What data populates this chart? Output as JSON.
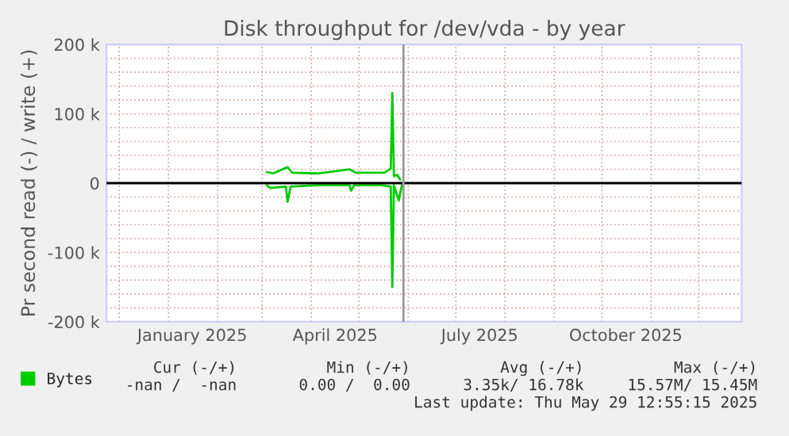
{
  "chart_data": {
    "type": "line",
    "title": "Disk throughput for /dev/vda - by year",
    "ylabel": "Pr second read (-) / write (+)",
    "xlim": [
      "2024-11-23",
      "2025-12-28"
    ],
    "xticks": [
      {
        "value": "2025-01-16",
        "label": "January 2025"
      },
      {
        "value": "2025-04-16",
        "label": "April 2025"
      },
      {
        "value": "2025-07-16",
        "label": "July 2025"
      },
      {
        "value": "2025-10-16",
        "label": "October 2025"
      }
    ],
    "ylim": [
      -200000,
      200000
    ],
    "yticks": [
      {
        "value": -200000,
        "label": "-200 k"
      },
      {
        "value": -100000,
        "label": "-100 k"
      },
      {
        "value": 0,
        "label": "0"
      },
      {
        "value": 100000,
        "label": "100 k"
      },
      {
        "value": 200000,
        "label": "200 k"
      }
    ],
    "grid": true,
    "legend": "bottom left",
    "series": [
      {
        "name": "Bytes",
        "color": "#00cc00",
        "x": [
          "2025-03-04",
          "2025-03-08",
          "2025-03-17",
          "2025-03-20",
          "2025-04-05",
          "2025-04-25",
          "2025-04-29",
          "2025-05-17",
          "2025-05-21",
          "2025-05-22",
          "2025-05-23",
          "2025-05-25",
          "2025-05-27"
        ],
        "values": [
          16000,
          14000,
          23000,
          15000,
          14000,
          20000,
          15000,
          15000,
          21000,
          130000,
          10000,
          12000,
          5000
        ]
      },
      {
        "color": "#00cc00",
        "x": [
          "2025-03-04",
          "2025-03-06",
          "2025-03-16",
          "2025-03-17",
          "2025-03-19",
          "2025-04-05",
          "2025-04-25",
          "2025-04-26",
          "2025-04-28",
          "2025-05-15",
          "2025-05-21",
          "2025-05-22",
          "2025-05-23",
          "2025-05-26",
          "2025-05-28"
        ],
        "values": [
          -3000,
          -7000,
          -5000,
          -27000,
          -5000,
          -3000,
          -3000,
          -11000,
          -3000,
          -3000,
          -5000,
          -150000,
          -3000,
          -25000,
          -3000
        ]
      }
    ],
    "ref_lines": [
      {
        "axis": "y",
        "value": 0,
        "color": "#000000"
      },
      {
        "axis": "x",
        "value": "2025-05-29",
        "color": "#999999"
      }
    ],
    "annotations": [
      "Cur (-/+)",
      "Min (-/+)",
      "Avg (-/+)",
      "Max (-/+)",
      "-nan /  -nan",
      "0.00 /  0.00",
      "3.35k/ 16.78k",
      "15.57M/ 15.45M",
      "Last update: Thu May 29 12:55:15 2025"
    ]
  }
}
